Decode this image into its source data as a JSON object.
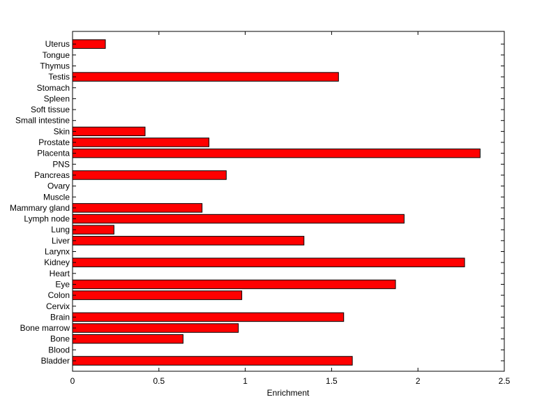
{
  "chart_data": {
    "type": "bar",
    "orientation": "horizontal",
    "categories": [
      "Bladder",
      "Blood",
      "Bone",
      "Bone marrow",
      "Brain",
      "Cervix",
      "Colon",
      "Eye",
      "Heart",
      "Kidney",
      "Larynx",
      "Liver",
      "Lung",
      "Lymph node",
      "Mammary gland",
      "Muscle",
      "Ovary",
      "Pancreas",
      "PNS",
      "Placenta",
      "Prostate",
      "Skin",
      "Small intestine",
      "Soft tissue",
      "Spleen",
      "Stomach",
      "Testis",
      "Thymus",
      "Tongue",
      "Uterus"
    ],
    "values": [
      1.62,
      0,
      0.64,
      0.96,
      1.57,
      0,
      0.98,
      1.87,
      0,
      2.27,
      0,
      1.34,
      0.24,
      1.92,
      0.75,
      0,
      0,
      0.89,
      0,
      2.36,
      0.79,
      0.42,
      0,
      0,
      0,
      0,
      1.54,
      0,
      0,
      0.19
    ],
    "xlabel": "Enrichment",
    "ylabel": "",
    "xlim": [
      0,
      2.5
    ],
    "xticks": [
      "0",
      "0.5",
      "1",
      "1.5",
      "2",
      "2.5"
    ],
    "bar_color": "#ff0000",
    "grid": false
  }
}
